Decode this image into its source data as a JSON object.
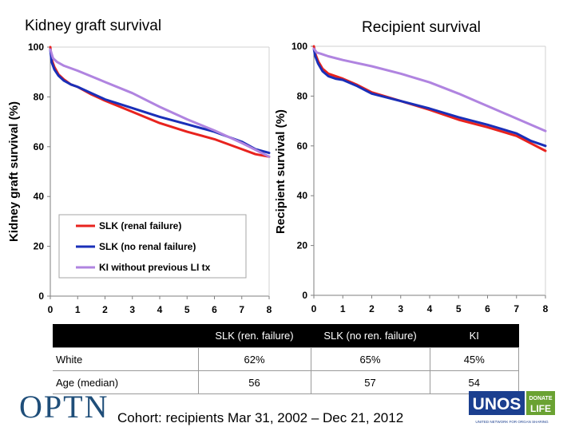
{
  "titles": {
    "left": "Kidney graft survival",
    "right": "Recipient survival"
  },
  "colors": {
    "slk_renal_failure": "#e8231e",
    "slk_no_renal_failure": "#1a2fb8",
    "ki_without_previous_li_tx": "#b084e0",
    "table_header_bg": "#000000",
    "optn_blue": "#1f4e79",
    "unos_blue": "#1b3f8f",
    "donate_life_green": "#6aa232"
  },
  "chart_data": [
    {
      "type": "line",
      "title": "Kidney graft survival",
      "xlabel": "",
      "ylabel": "Kidney graft survival (%)",
      "xlim": [
        0,
        8
      ],
      "ylim": [
        0,
        100
      ],
      "x_ticks": [
        "0",
        "1",
        "2",
        "3",
        "4",
        "5",
        "6",
        "7",
        "8"
      ],
      "y_ticks": [
        "0",
        "20",
        "40",
        "60",
        "80",
        "100"
      ],
      "grid": false,
      "legend_position": "bottom-left",
      "series": [
        {
          "name": "SLK (renal failure)",
          "color_key": "slk_renal_failure",
          "x": [
            0,
            0.05,
            0.15,
            0.3,
            0.5,
            0.75,
            1,
            1.5,
            2,
            3,
            4,
            5,
            6,
            7,
            7.5,
            8
          ],
          "y": [
            100,
            95,
            92,
            89,
            87,
            85,
            84,
            81,
            78.5,
            74,
            69.5,
            66,
            63,
            59,
            57,
            56
          ]
        },
        {
          "name": "SLK (no renal failure)",
          "color_key": "slk_no_renal_failure",
          "x": [
            0,
            0.05,
            0.15,
            0.3,
            0.5,
            0.75,
            1,
            1.5,
            2,
            3,
            4,
            5,
            6,
            7,
            7.5,
            8
          ],
          "y": [
            99,
            94,
            91,
            88.5,
            86.5,
            85,
            84,
            81.5,
            79,
            75.5,
            72,
            69,
            66,
            62,
            59,
            57.5
          ]
        },
        {
          "name": "KI without previous LI tx",
          "color_key": "ki_without_previous_li_tx",
          "x": [
            0,
            0.1,
            0.25,
            0.5,
            1,
            2,
            3,
            4,
            5,
            6,
            7,
            8
          ],
          "y": [
            99,
            95.5,
            94,
            92.5,
            90.5,
            86,
            81.5,
            76,
            71,
            66.5,
            61.5,
            56
          ]
        }
      ]
    },
    {
      "type": "line",
      "title": "Recipient survival",
      "xlabel": "",
      "ylabel": "Recipient survival (%)",
      "xlim": [
        0,
        8
      ],
      "ylim": [
        0,
        100
      ],
      "x_ticks": [
        "0",
        "1",
        "2",
        "3",
        "4",
        "5",
        "6",
        "7",
        "8"
      ],
      "y_ticks": [
        "0",
        "20",
        "40",
        "60",
        "80",
        "100"
      ],
      "grid": false,
      "series": [
        {
          "name": "SLK (renal failure)",
          "color_key": "slk_renal_failure",
          "x": [
            0,
            0.05,
            0.15,
            0.3,
            0.5,
            0.75,
            1,
            1.5,
            2,
            3,
            4,
            5,
            6,
            7,
            7.5,
            8
          ],
          "y": [
            100,
            97,
            94,
            91,
            89,
            88,
            87,
            84.5,
            81.5,
            78,
            74.5,
            70.5,
            67.5,
            64,
            61,
            58
          ]
        },
        {
          "name": "SLK (no renal failure)",
          "color_key": "slk_no_renal_failure",
          "x": [
            0,
            0.05,
            0.15,
            0.3,
            0.5,
            0.75,
            1,
            1.5,
            2,
            3,
            4,
            5,
            6,
            7,
            7.5,
            8
          ],
          "y": [
            99,
            96,
            93,
            90,
            88,
            87,
            86.5,
            84,
            81,
            78,
            75,
            71.5,
            68.5,
            65,
            62,
            60
          ]
        },
        {
          "name": "KI without previous LI tx",
          "color_key": "ki_without_previous_li_tx",
          "x": [
            0,
            0.1,
            0.25,
            0.5,
            1,
            2,
            3,
            4,
            5,
            6,
            7,
            8
          ],
          "y": [
            99,
            97.5,
            97,
            96,
            94.5,
            92,
            89,
            85.5,
            81,
            76,
            71,
            66
          ]
        }
      ]
    }
  ],
  "table": {
    "headers": [
      "",
      "SLK (ren. failure)",
      "SLK (no ren. failure)",
      "KI"
    ],
    "rows": [
      [
        "White",
        "62%",
        "65%",
        "45%"
      ],
      [
        "Age (median)",
        "56",
        "57",
        "54"
      ]
    ]
  },
  "footer": {
    "optn_logo": "OPTN",
    "cohort": "Cohort: recipients Mar 31, 2002 – Dec 21, 2012",
    "unos_logo": "UNOS",
    "donate_life": [
      "DONATE",
      "LIFE"
    ],
    "unos_caption": "UNITED NETWORK FOR ORGAN SHARING"
  }
}
